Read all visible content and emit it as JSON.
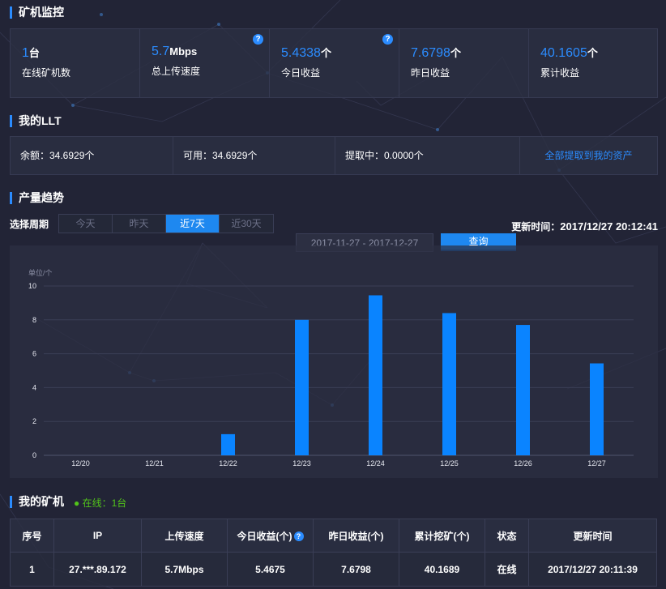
{
  "colors": {
    "accent": "#2b8cff",
    "bar": "#0a84ff",
    "online": "#52c41a",
    "background": "#222436"
  },
  "sections": {
    "monitor_title": "矿机监控",
    "llt_title": "我的LLT",
    "trend_title": "产量趋势",
    "miners_title": "我的矿机"
  },
  "stats": [
    {
      "value": "1",
      "unit": "台",
      "label": "在线矿机数"
    },
    {
      "value": "5.7",
      "unit": "Mbps",
      "label": "总上传速度",
      "help": "?"
    },
    {
      "value": "5.4338",
      "unit": "个",
      "label": "今日收益",
      "help": "?"
    },
    {
      "value": "7.6798",
      "unit": "个",
      "label": "昨日收益"
    },
    {
      "value": "40.1605",
      "unit": "个",
      "label": "累计收益"
    }
  ],
  "llt": {
    "balance": "余额：34.6929个",
    "available": "可用：34.6929个",
    "withdrawing": "提取中：0.0000个",
    "withdraw_all_link": "全部提取到我的资产"
  },
  "trend": {
    "period_label": "选择周期",
    "tabs": [
      "今天",
      "昨天",
      "近7天",
      "近30天"
    ],
    "active_tab": "近7天",
    "update_label": "更新时间：",
    "update_time": "2017/12/27 20:12:41",
    "date_range": "2017-11-27 - 2017-12-27",
    "query_button": "查询"
  },
  "chart_data": {
    "type": "bar",
    "unit_label": "单位/个",
    "categories": [
      "12/20",
      "12/21",
      "12/22",
      "12/23",
      "12/24",
      "12/25",
      "12/26",
      "12/27"
    ],
    "values": [
      0,
      0,
      1.25,
      8.0,
      9.45,
      8.4,
      7.7,
      5.43
    ],
    "ylim": [
      0,
      10
    ],
    "yticks": [
      0,
      2,
      4,
      6,
      8,
      10
    ],
    "grid": true
  },
  "miners": {
    "online_status": "在线：1台",
    "columns": [
      "序号",
      "IP",
      "上传速度",
      "今日收益(个)",
      "昨日收益(个)",
      "累计挖矿(个)",
      "状态",
      "更新时间"
    ],
    "rows": [
      [
        "1",
        "27.***.89.172",
        "5.7Mbps",
        "5.4675",
        "7.6798",
        "40.1689",
        "在线",
        "2017/12/27 20:11:39"
      ]
    ]
  }
}
